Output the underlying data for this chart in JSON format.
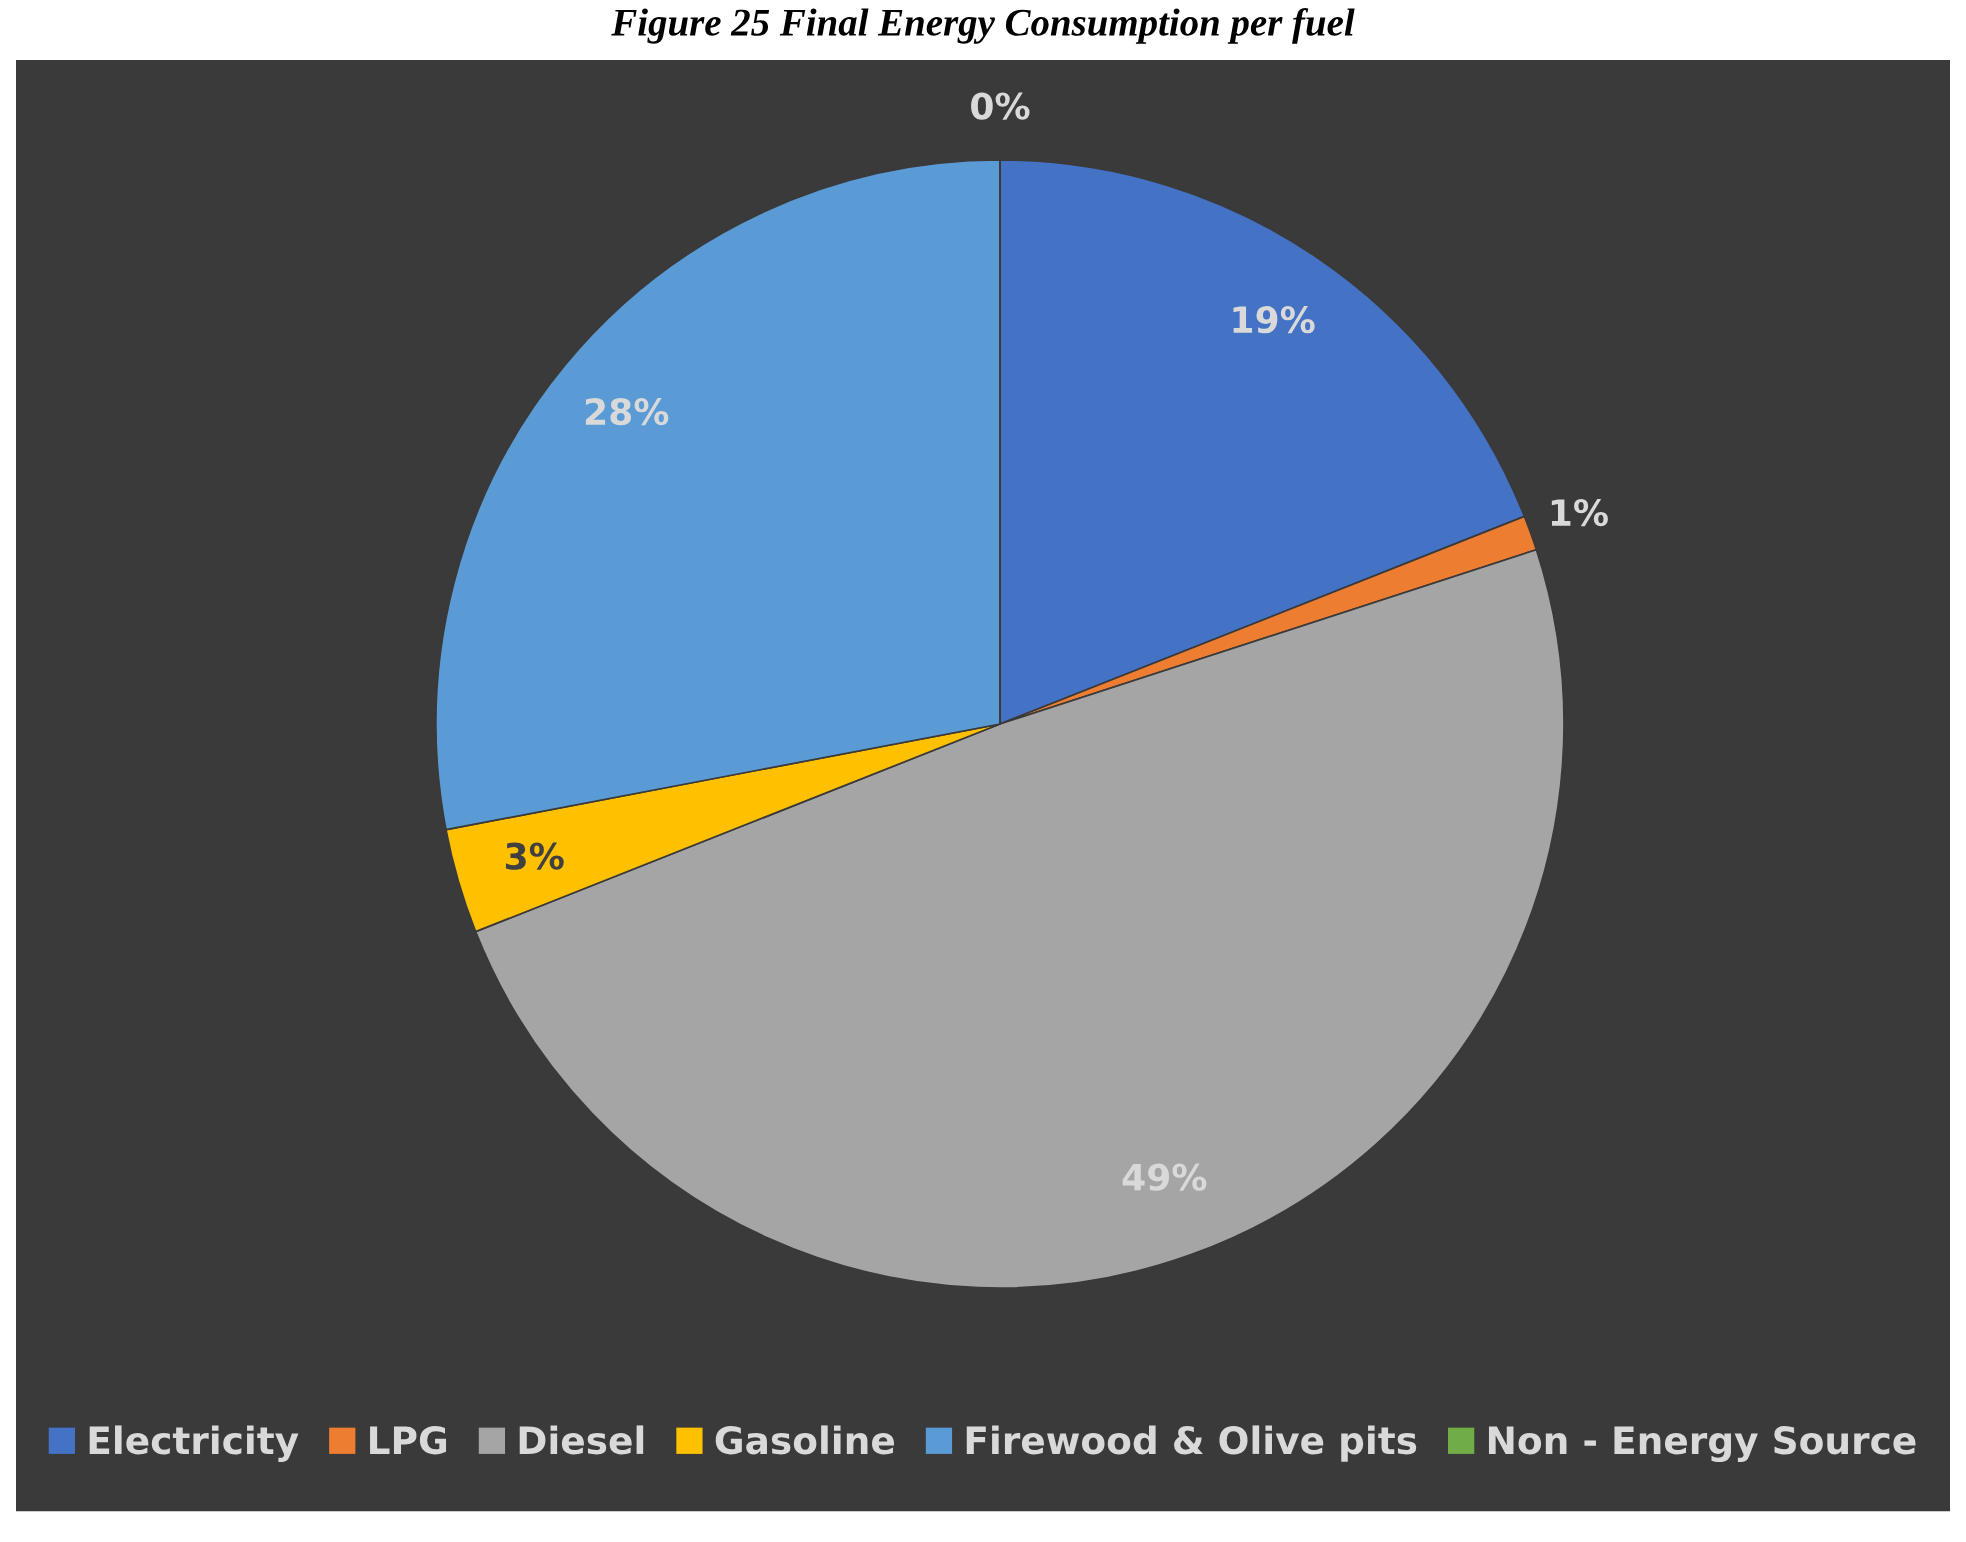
{
  "chart_data": {
    "type": "pie",
    "title": "Figure 25 Final Energy Consumption per fuel",
    "categories": [
      "Electricity",
      "LPG",
      "Diesel",
      "Gasoline",
      "Firewood & Olive pits",
      "Non - Energy Source"
    ],
    "values": [
      19,
      1,
      49,
      3,
      28,
      0
    ],
    "colors": [
      "#4472c4",
      "#ed7d31",
      "#a5a5a5",
      "#ffc000",
      "#5b9bd5",
      "#70ad47"
    ],
    "value_labels": [
      "19%",
      "1%",
      "49%",
      "3%",
      "28%",
      "0%"
    ],
    "legend": "bottom"
  }
}
